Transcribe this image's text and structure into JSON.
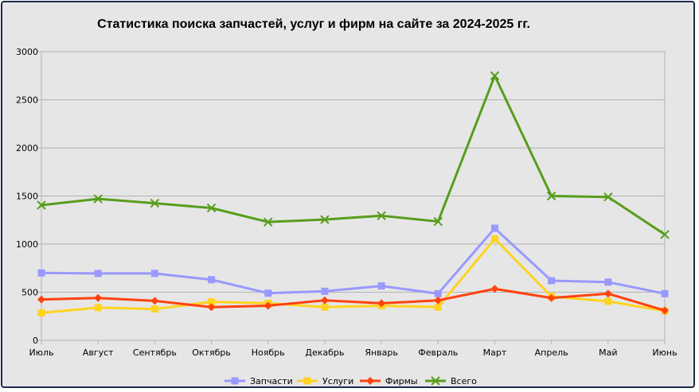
{
  "chart_data": {
    "type": "line",
    "title": "Статистика поиска запчастей, услуг и фирм на сайте за 2024-2025 гг.",
    "xlabel": "",
    "ylabel": "",
    "ylim": [
      0,
      3000
    ],
    "yticks": [
      0,
      500,
      1000,
      1500,
      2000,
      2500,
      3000
    ],
    "grid": true,
    "legend_position": "bottom",
    "categories": [
      "Июль",
      "Август",
      "Сентябрь",
      "Октябрь",
      "Ноябрь",
      "Декабрь",
      "Январь",
      "Февраль",
      "Март",
      "Апрель",
      "Май",
      "Июнь"
    ],
    "series": [
      {
        "name": "Запчасти",
        "color": "#9999ff",
        "marker": "square",
        "values": [
          700,
          695,
          695,
          630,
          490,
          510,
          565,
          485,
          1165,
          620,
          605,
          485
        ]
      },
      {
        "name": "Услуги",
        "color": "#ffd320",
        "marker": "square",
        "values": [
          285,
          340,
          325,
          400,
          385,
          345,
          360,
          345,
          1055,
          455,
          405,
          305
        ]
      },
      {
        "name": "Фирмы",
        "color": "#ff420e",
        "marker": "diamond",
        "values": [
          425,
          440,
          410,
          345,
          360,
          415,
          385,
          415,
          535,
          440,
          485,
          310
        ]
      },
      {
        "name": "Всего",
        "color": "#579d1c",
        "marker": "x",
        "values": [
          1405,
          1470,
          1425,
          1375,
          1230,
          1255,
          1295,
          1235,
          2750,
          1500,
          1490,
          1100
        ]
      }
    ]
  }
}
